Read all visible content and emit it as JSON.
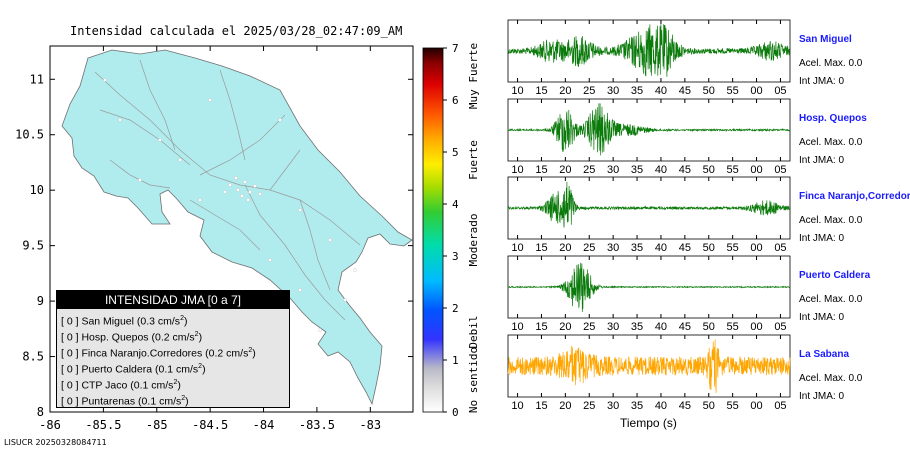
{
  "map": {
    "title": "Intensidad calculada el 2025/03/28_02:47:09_AM",
    "x_ticks": [
      "-86",
      "-85.5",
      "-85",
      "-84.5",
      "-84",
      "-83.5",
      "-83"
    ],
    "y_ticks": [
      "11",
      "10.5",
      "10",
      "9.5",
      "9",
      "8.5",
      "8"
    ],
    "land_color": "#b0ecee",
    "legend": {
      "title": "INTENSIDAD JMA [0 a 7]",
      "items": [
        {
          "bracket": "[ 0 ]",
          "label": "San Miguel (0.3 cm/s",
          "sup": "2",
          "tail": ")"
        },
        {
          "bracket": "[ 0 ]",
          "label": "Hosp. Quepos (0.2 cm/s",
          "sup": "2",
          "tail": ")"
        },
        {
          "bracket": "[ 0 ]",
          "label": "Finca Naranjo.Corredores (0.2 cm/s",
          "sup": "2",
          "tail": ")"
        },
        {
          "bracket": "[ 0 ]",
          "label": "Puerto Caldera (0.1 cm/s",
          "sup": "2",
          "tail": ")"
        },
        {
          "bracket": "[ 0 ]",
          "label": "CTP Jaco (0.1 cm/s",
          "sup": "2",
          "tail": ")"
        },
        {
          "bracket": "[ 0 ]",
          "label": "Puntarenas (0.1 cm/s",
          "sup": "2",
          "tail": ")"
        }
      ]
    }
  },
  "colorbar": {
    "ticks": [
      "0",
      "1",
      "2",
      "3",
      "4",
      "5",
      "6",
      "7"
    ],
    "labels": [
      "No sentido",
      "Debil",
      "Moderado",
      "Fuerte",
      "Muy Fuerte"
    ]
  },
  "footer_id": "LISUCR 20250328084711",
  "time_axis": {
    "label": "Tiempo (s)",
    "ticks": [
      "10",
      "15",
      "20",
      "25",
      "30",
      "35",
      "40",
      "45",
      "50",
      "55",
      "00",
      "05"
    ]
  },
  "stations": [
    {
      "name": "San Miguel",
      "acc": "Acel. Max. 0.0",
      "int": "Int JMA: 0",
      "color": "#0a7a0a"
    },
    {
      "name": "Hosp. Quepos",
      "acc": "Acel. Max. 0.0",
      "int": "Int JMA: 0",
      "color": "#0a7a0a"
    },
    {
      "name": "Finca Naranjo,Corredores",
      "acc": "Acel. Max. 0.0",
      "int": "Int JMA: 0",
      "color": "#0a7a0a"
    },
    {
      "name": "Puerto Caldera",
      "acc": "Acel. Max. 0.0",
      "int": "Int JMA: 0",
      "color": "#0a7a0a"
    },
    {
      "name": "La Sabana",
      "acc": "Acel. Max. 0.0",
      "int": "Int JMA: 0",
      "color": "#ffa500"
    }
  ],
  "chart_data": [
    {
      "type": "heatmap",
      "title": "Intensidad calculada el 2025/03/28_02:47:09_AM",
      "xlim": [
        -86,
        -82.6
      ],
      "ylim": [
        8,
        11.3
      ],
      "grid": false,
      "legend_placement": "bottom-left",
      "values": {
        "San Miguel": 0,
        "Hosp. Quepos": 0,
        "Finca Naranjo.Corredores": 0,
        "Puerto Caldera": 0,
        "CTP Jaco": 0,
        "Puntarenas": 0
      },
      "peak_acceleration_cm_s2": {
        "San Miguel": 0.3,
        "Hosp. Quepos": 0.2,
        "Finca Naranjo.Corredores": 0.2,
        "Puerto Caldera": 0.1,
        "CTP Jaco": 0.1,
        "Puntarenas": 0.1
      },
      "colorbar_range": [
        0,
        7
      ]
    },
    {
      "type": "line",
      "xlabel": "Tiempo (s)",
      "series": [
        {
          "name": "San Miguel",
          "bursts": [
            {
              "center": 17,
              "amplitude": 0.35,
              "width": 3
            },
            {
              "center": 23,
              "amplitude": 0.5,
              "width": 3
            },
            {
              "center": 36,
              "amplitude": 0.6,
              "width": 4
            },
            {
              "center": 40,
              "amplitude": 0.95,
              "width": 3
            },
            {
              "center": 63,
              "amplitude": 0.3,
              "width": 3
            }
          ],
          "noise": 0.1
        },
        {
          "name": "Hosp. Quepos",
          "bursts": [
            {
              "center": 20,
              "amplitude": 0.9,
              "width": 2
            },
            {
              "center": 27,
              "amplitude": 1,
              "width": 2.5
            },
            {
              "center": 33,
              "amplitude": 0.2,
              "width": 4
            }
          ],
          "noise": 0.03
        },
        {
          "name": "Finca Naranjo,Corredores",
          "bursts": [
            {
              "center": 18,
              "amplitude": 0.55,
              "width": 2
            },
            {
              "center": 20.5,
              "amplitude": 1,
              "width": 1.2
            },
            {
              "center": 62,
              "amplitude": 0.25,
              "width": 3
            }
          ],
          "noise": 0.05
        },
        {
          "name": "Puerto Caldera",
          "bursts": [
            {
              "center": 23,
              "amplitude": 1,
              "width": 2.5
            }
          ],
          "noise": 0.02
        },
        {
          "name": "La Sabana",
          "bursts": [
            {
              "center": 51,
              "amplitude": 0.9,
              "width": 1
            },
            {
              "center": 22,
              "amplitude": 0.45,
              "width": 3
            }
          ],
          "noise": 0.35
        }
      ]
    }
  ]
}
